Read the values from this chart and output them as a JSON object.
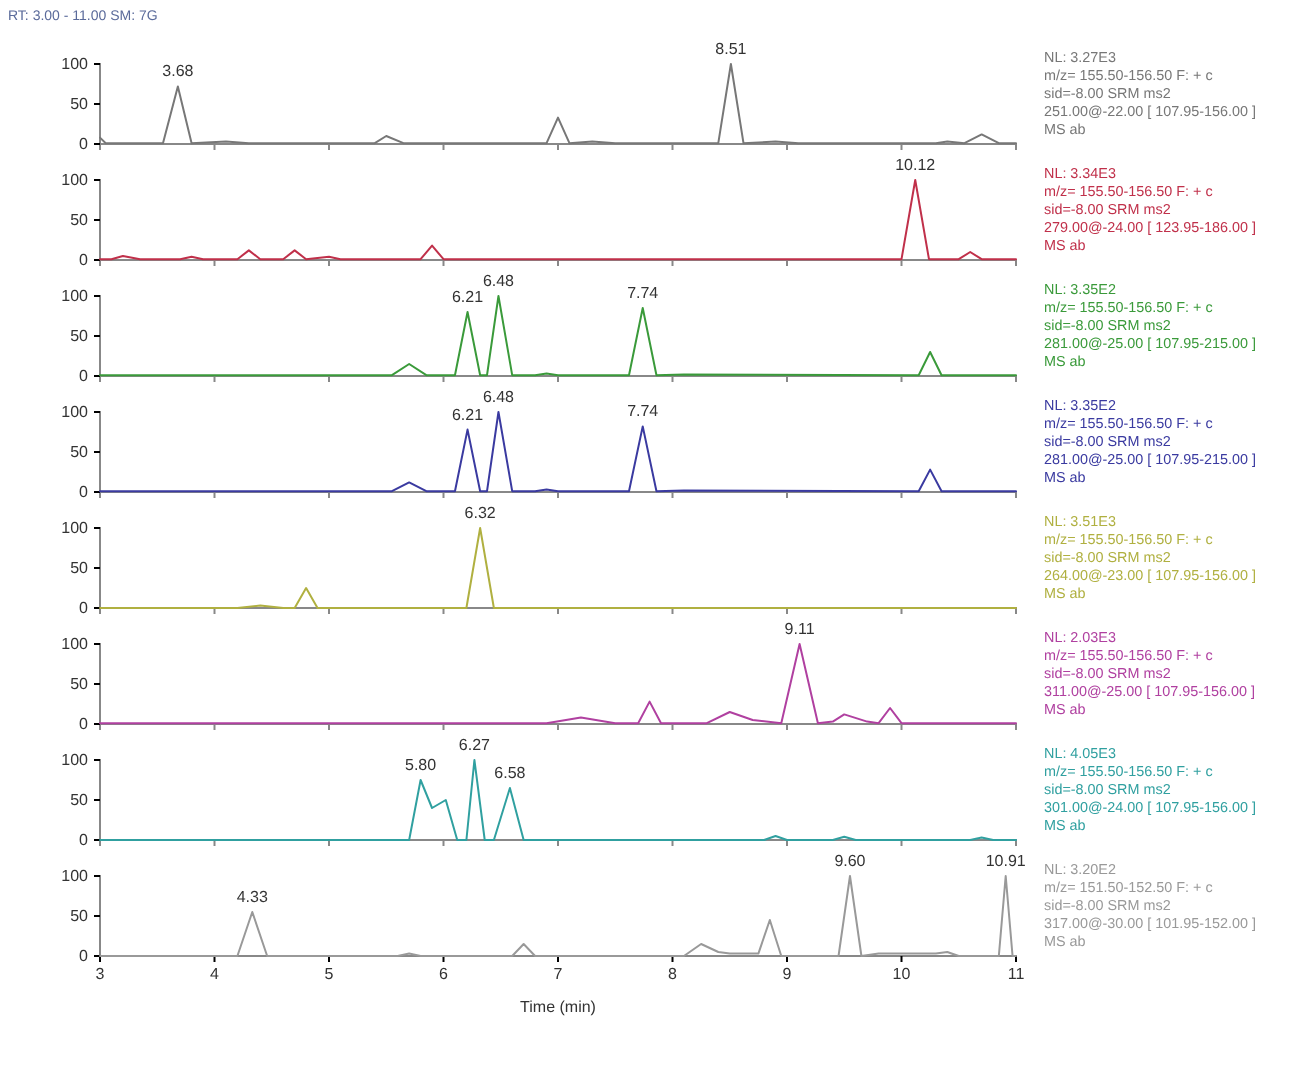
{
  "chart_data": [
    {
      "type": "line",
      "title": "RT: 3.00 - 11.00 SM: 7G",
      "xlim": [
        3,
        11
      ],
      "xticks": [
        3,
        4,
        5,
        6,
        7,
        8,
        9,
        10,
        11
      ],
      "ylim": [
        0,
        100
      ],
      "yticks": [
        0,
        50,
        100
      ],
      "tick_labels": "y",
      "series": [
        {
          "color": "#777777",
          "x": [
            3,
            3.05,
            3.55,
            3.68,
            3.8,
            4.1,
            4.3,
            5.4,
            5.5,
            5.65,
            6.9,
            7,
            7.1,
            7.3,
            7.5,
            8.4,
            8.51,
            8.62,
            8.9,
            9.1,
            10.3,
            10.4,
            10.55,
            10.7,
            10.85,
            11
          ],
          "values": [
            8,
            1,
            1,
            72,
            1,
            3,
            1,
            1,
            10,
            1,
            1,
            33,
            1,
            3,
            1,
            1,
            100,
            1,
            3,
            1,
            1,
            3,
            1,
            12,
            1,
            1
          ]
        }
      ],
      "annotations": [
        {
          "text": "3.68",
          "x": 3.68,
          "y": 72
        },
        {
          "text": "8.51",
          "x": 8.51,
          "y": 100
        },
        "NL: 3.27E3",
        "m/z= 155.50-156.50 F: + c",
        "sid=-8.00 SRM ms2",
        "251.00@-22.00 [ 107.95-156.00 ]",
        "MS ab"
      ]
    },
    {
      "type": "line",
      "xlim": [
        3,
        11
      ],
      "xticks": [
        3,
        4,
        5,
        6,
        7,
        8,
        9,
        10,
        11
      ],
      "ylim": [
        0,
        100
      ],
      "yticks": [
        0,
        50,
        100
      ],
      "tick_labels": "y",
      "series": [
        {
          "color": "#c0304a",
          "x": [
            3,
            3.1,
            3.2,
            3.35,
            3.7,
            3.8,
            3.9,
            4.2,
            4.3,
            4.4,
            4.6,
            4.7,
            4.8,
            5,
            5.1,
            5.8,
            5.9,
            6,
            10,
            10.12,
            10.24,
            10.5,
            10.6,
            10.7,
            11
          ],
          "values": [
            1,
            1,
            5,
            1,
            1,
            4,
            1,
            1,
            12,
            1,
            1,
            12,
            1,
            4,
            1,
            1,
            18,
            1,
            1,
            100,
            1,
            1,
            10,
            1,
            1
          ]
        }
      ],
      "annotations": [
        {
          "text": "10.12",
          "x": 10.12,
          "y": 100
        },
        "NL: 3.34E3",
        "m/z= 155.50-156.50 F: + c",
        "sid=-8.00 SRM ms2",
        "279.00@-24.00 [ 123.95-186.00 ]",
        "MS ab"
      ]
    },
    {
      "type": "line",
      "xlim": [
        3,
        11
      ],
      "xticks": [
        3,
        4,
        5,
        6,
        7,
        8,
        9,
        10,
        11
      ],
      "ylim": [
        0,
        100
      ],
      "yticks": [
        0,
        50,
        100
      ],
      "tick_labels": "y",
      "series": [
        {
          "color": "#3a9a3a",
          "x": [
            3,
            5.55,
            5.7,
            5.85,
            6.1,
            6.21,
            6.32,
            6.38,
            6.48,
            6.6,
            6.8,
            6.9,
            7,
            7.62,
            7.74,
            7.86,
            8.1,
            10.15,
            10.25,
            10.35,
            11
          ],
          "values": [
            1,
            1,
            15,
            1,
            1,
            80,
            1,
            1,
            100,
            1,
            1,
            3,
            1,
            1,
            85,
            1,
            2,
            1,
            30,
            1,
            1
          ]
        }
      ],
      "annotations": [
        {
          "text": "6.21",
          "x": 6.21,
          "y": 80
        },
        {
          "text": "6.48",
          "x": 6.48,
          "y": 100
        },
        {
          "text": "7.74",
          "x": 7.74,
          "y": 85
        },
        "NL: 3.35E2",
        "m/z= 155.50-156.50 F: + c",
        "sid=-8.00 SRM ms2",
        "281.00@-25.00 [ 107.95-215.00 ]",
        "MS ab"
      ]
    },
    {
      "type": "line",
      "xlim": [
        3,
        11
      ],
      "xticks": [
        3,
        4,
        5,
        6,
        7,
        8,
        9,
        10,
        11
      ],
      "ylim": [
        0,
        100
      ],
      "yticks": [
        0,
        50,
        100
      ],
      "tick_labels": "y",
      "series": [
        {
          "color": "#3a3aa0",
          "x": [
            3,
            5.55,
            5.7,
            5.85,
            6.1,
            6.21,
            6.32,
            6.38,
            6.48,
            6.6,
            6.8,
            6.9,
            7,
            7.62,
            7.74,
            7.86,
            8.1,
            10.15,
            10.25,
            10.35,
            11
          ],
          "values": [
            1,
            1,
            12,
            1,
            1,
            78,
            1,
            1,
            100,
            1,
            1,
            3,
            1,
            1,
            82,
            1,
            2,
            1,
            28,
            1,
            1
          ]
        }
      ],
      "annotations": [
        {
          "text": "6.21",
          "x": 6.21,
          "y": 78
        },
        {
          "text": "6.48",
          "x": 6.48,
          "y": 100
        },
        {
          "text": "7.74",
          "x": 7.74,
          "y": 82
        },
        "NL: 3.35E2",
        "m/z= 155.50-156.50 F: + c",
        "sid=-8.00 SRM ms2",
        "281.00@-25.00 [ 107.95-215.00 ]",
        "MS ab"
      ]
    },
    {
      "type": "line",
      "xlim": [
        3,
        11
      ],
      "xticks": [
        3,
        4,
        5,
        6,
        7,
        8,
        9,
        10,
        11
      ],
      "ylim": [
        0,
        100
      ],
      "yticks": [
        0,
        50,
        100
      ],
      "tick_labels": "y",
      "series": [
        {
          "color": "#b0b040",
          "x": [
            3,
            4.2,
            4.4,
            4.6,
            4.7,
            4.8,
            4.9,
            6.2,
            6.32,
            6.44,
            11
          ],
          "values": [
            0,
            0,
            3,
            0,
            0,
            25,
            0,
            0,
            100,
            0,
            0
          ]
        }
      ],
      "annotations": [
        {
          "text": "6.32",
          "x": 6.32,
          "y": 100
        },
        "NL: 3.51E3",
        "m/z= 155.50-156.50 F: + c",
        "sid=-8.00 SRM ms2",
        "264.00@-23.00 [ 107.95-156.00 ]",
        "MS ab"
      ]
    },
    {
      "type": "line",
      "xlim": [
        3,
        11
      ],
      "xticks": [
        3,
        4,
        5,
        6,
        7,
        8,
        9,
        10,
        11
      ],
      "ylim": [
        0,
        100
      ],
      "yticks": [
        0,
        50,
        100
      ],
      "tick_labels": "y",
      "series": [
        {
          "color": "#b040a0",
          "x": [
            3,
            6.9,
            7.2,
            7.5,
            7.7,
            7.8,
            7.9,
            8.3,
            8.5,
            8.7,
            8.95,
            9.11,
            9.27,
            9.4,
            9.5,
            9.7,
            9.8,
            9.9,
            10,
            11
          ],
          "values": [
            1,
            1,
            8,
            1,
            1,
            28,
            1,
            1,
            15,
            5,
            1,
            100,
            1,
            3,
            12,
            3,
            1,
            20,
            1,
            1
          ]
        }
      ],
      "annotations": [
        {
          "text": "9.11",
          "x": 9.11,
          "y": 100
        },
        "NL: 2.03E3",
        "m/z= 155.50-156.50 F: + c",
        "sid=-8.00 SRM ms2",
        "311.00@-25.00 [ 107.95-156.00 ]",
        "MS ab"
      ]
    },
    {
      "type": "line",
      "xlim": [
        3,
        11
      ],
      "xticks": [
        3,
        4,
        5,
        6,
        7,
        8,
        9,
        10,
        11
      ],
      "ylim": [
        0,
        100
      ],
      "yticks": [
        0,
        50,
        100
      ],
      "tick_labels": "y",
      "series": [
        {
          "color": "#30a0a0",
          "x": [
            3,
            5.7,
            5.8,
            5.9,
            6.02,
            6.12,
            6.2,
            6.27,
            6.36,
            6.44,
            6.58,
            6.7,
            6.85,
            8.8,
            8.9,
            9,
            9.4,
            9.5,
            9.6,
            10.6,
            10.7,
            10.8,
            11
          ],
          "values": [
            0,
            0,
            75,
            40,
            50,
            0,
            0,
            100,
            0,
            0,
            65,
            0,
            0,
            0,
            5,
            0,
            0,
            4,
            0,
            0,
            3,
            0,
            0
          ]
        }
      ],
      "annotations": [
        {
          "text": "5.80",
          "x": 5.8,
          "y": 75
        },
        {
          "text": "6.27",
          "x": 6.27,
          "y": 100
        },
        {
          "text": "6.58",
          "x": 6.58,
          "y": 65
        },
        "NL: 4.05E3",
        "m/z= 155.50-156.50 F: + c",
        "sid=-8.00 SRM ms2",
        "301.00@-24.00 [ 107.95-156.00 ]",
        "MS ab"
      ]
    },
    {
      "type": "line",
      "xlabel": "Time (min)",
      "xlim": [
        3,
        11
      ],
      "xticks": [
        3,
        4,
        5,
        6,
        7,
        8,
        9,
        10,
        11
      ],
      "ylim": [
        0,
        100
      ],
      "yticks": [
        0,
        50,
        100
      ],
      "series": [
        {
          "color": "#999999",
          "x": [
            3,
            4.2,
            4.33,
            4.46,
            5.6,
            5.7,
            5.8,
            6.6,
            6.7,
            6.8,
            8.1,
            8.25,
            8.4,
            8.5,
            8.75,
            8.85,
            8.95,
            9.45,
            9.55,
            9.65,
            9.8,
            10.3,
            10.4,
            10.5,
            10.85,
            10.91,
            10.97,
            11
          ],
          "values": [
            0,
            0,
            55,
            0,
            0,
            3,
            0,
            0,
            15,
            0,
            0,
            15,
            5,
            3,
            3,
            45,
            0,
            0,
            100,
            0,
            3,
            3,
            5,
            0,
            0,
            100,
            0,
            0
          ]
        }
      ],
      "annotations": [
        {
          "text": "4.33",
          "x": 4.33,
          "y": 55
        },
        {
          "text": "9.60",
          "x": 9.55,
          "y": 100
        },
        {
          "text": "10.91",
          "x": 10.91,
          "y": 100
        },
        "NL: 3.20E2",
        "m/z= 151.50-152.50 F: + c",
        "sid=-8.00 SRM ms2",
        "317.00@-30.00 [ 101.95-152.00 ]",
        "MS ab"
      ]
    }
  ]
}
